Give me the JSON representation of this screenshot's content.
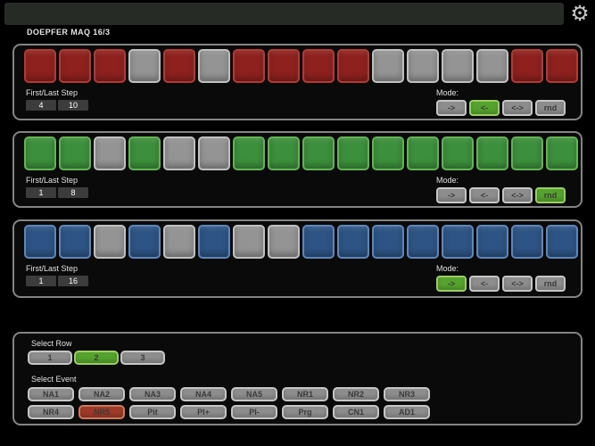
{
  "window": {
    "settings_icon": "gear",
    "gear_glyph": "⚙"
  },
  "app_title": "DOEPFER MAQ 16/3",
  "labels": {
    "first_last": "First/Last Step",
    "mode": "Mode:",
    "select_row": "Select Row",
    "select_event": "Select Event"
  },
  "rows": [
    {
      "id": 1,
      "color_name": "red",
      "steps": [
        1,
        1,
        1,
        0,
        1,
        0,
        1,
        1,
        1,
        1,
        0,
        0,
        0,
        0,
        1,
        1
      ],
      "first_step": "4",
      "last_step": "10",
      "modes": [
        {
          "label": "->",
          "selected": false
        },
        {
          "label": "<-",
          "selected": true
        },
        {
          "label": "<->",
          "selected": false
        },
        {
          "label": "rnd",
          "selected": false
        }
      ]
    },
    {
      "id": 2,
      "color_name": "green",
      "steps": [
        1,
        1,
        0,
        1,
        0,
        0,
        1,
        1,
        1,
        1,
        1,
        1,
        1,
        1,
        1,
        1
      ],
      "first_step": "1",
      "last_step": "8",
      "modes": [
        {
          "label": "->",
          "selected": false
        },
        {
          "label": "<-",
          "selected": false
        },
        {
          "label": "<->",
          "selected": false
        },
        {
          "label": "rnd",
          "selected": true
        }
      ]
    },
    {
      "id": 3,
      "color_name": "blue",
      "steps": [
        1,
        1,
        0,
        1,
        0,
        1,
        0,
        0,
        1,
        1,
        1,
        1,
        1,
        1,
        1,
        1
      ],
      "first_step": "1",
      "last_step": "16",
      "modes": [
        {
          "label": "->",
          "selected": true
        },
        {
          "label": "<-",
          "selected": false
        },
        {
          "label": "<->",
          "selected": false
        },
        {
          "label": "rnd",
          "selected": false
        }
      ]
    }
  ],
  "selection": {
    "row_buttons": [
      {
        "label": "1",
        "selected": false
      },
      {
        "label": "2",
        "selected": true
      },
      {
        "label": "3",
        "selected": false
      }
    ],
    "event_rows": [
      [
        {
          "label": "NA1",
          "selected": false
        },
        {
          "label": "NA2",
          "selected": false
        },
        {
          "label": "NA3",
          "selected": false
        },
        {
          "label": "NA4",
          "selected": false
        },
        {
          "label": "NA5",
          "selected": false
        },
        {
          "label": "NR1",
          "selected": false
        },
        {
          "label": "NR2",
          "selected": false
        },
        {
          "label": "NR3",
          "selected": false
        }
      ],
      [
        {
          "label": "NR4",
          "selected": false
        },
        {
          "label": "NR5",
          "selected": true
        },
        {
          "label": "Pit",
          "selected": false
        },
        {
          "label": "PI+",
          "selected": false
        },
        {
          "label": "PI-",
          "selected": false
        },
        {
          "label": "Prg",
          "selected": false
        },
        {
          "label": "CN1",
          "selected": false
        },
        {
          "label": "AD1",
          "selected": false
        }
      ]
    ]
  },
  "colors": {
    "background": "#000000",
    "titlebar": "#272b26",
    "panel_fill": "#0a0a0a",
    "panel_border": "#848484",
    "step_red_fill": "#8e211e",
    "step_red_border": "#b13a34",
    "step_green_fill": "#3c8f3c",
    "step_green_border": "#63b254",
    "step_blue_fill": "#2d5484",
    "step_blue_border": "#5e86ba",
    "step_off_fill": "#949494",
    "step_off_border": "#c0c0c0",
    "button_fill": "#8d8d8d",
    "button_border": "#c6c6c6",
    "button_text": "#3a3a3a",
    "selected_green_fill": "#55a32e",
    "selected_green_border": "#9ccc65",
    "selected_red_fill": "#a03a28",
    "selected_red_border": "#c97a5e",
    "value_box_fill": "#3c3c3c",
    "value_text": "#ffffff",
    "label_text": "#e2e2e2",
    "gear_icon": "#c4c4c4"
  }
}
